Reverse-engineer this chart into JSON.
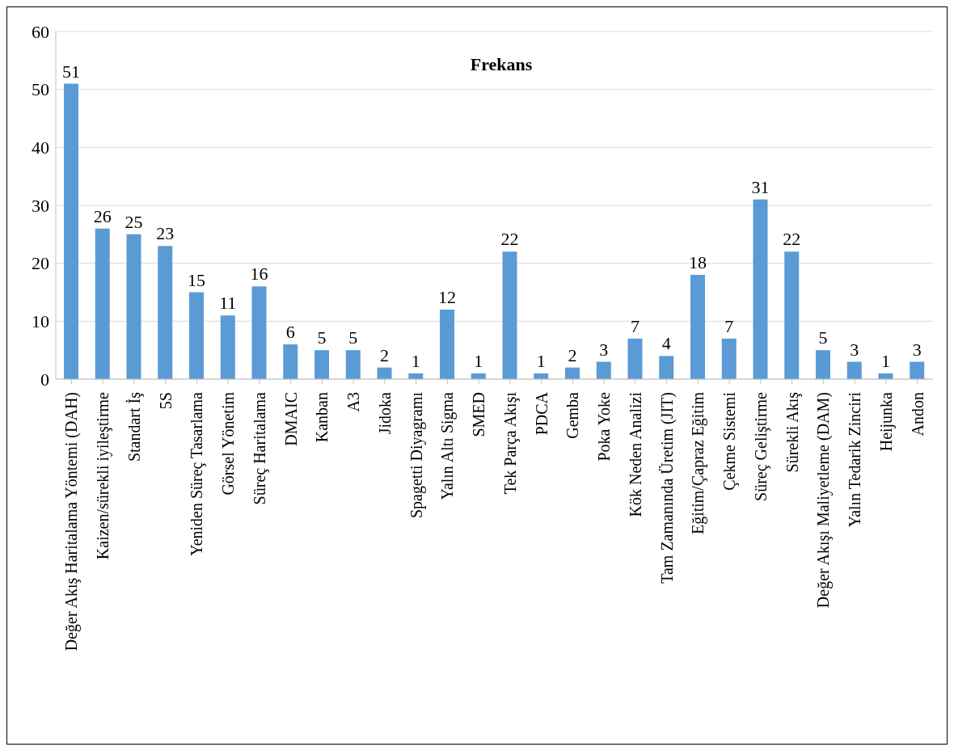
{
  "chart_data": {
    "type": "bar",
    "title": "Frekans",
    "categories": [
      "Değer Akış Haritalama Yöntemi (DAH)",
      "Kaizen/sürekli iyileştirme",
      "Standart İş",
      "5S",
      "Yeniden Süreç Tasarlama",
      "Görsel Yönetim",
      "Süreç Haritalama",
      "DMAIC",
      "Kanban",
      "A3",
      "Jidoka",
      "Spagetti Diyagramı",
      "Yalın Altı Sigma",
      "SMED",
      "Tek Parça Akışı",
      "PDCA",
      "Gemba",
      "Poka Yoke",
      "Kök Neden Analizi",
      "Tam Zamanında Üretim (JIT)",
      "Eğitim/Çapraz Eğitim",
      "Çekme Sistemi",
      "Süreç Geliştirme",
      "Sürekli Akış",
      "Değer Akışı Maliyetleme (DAM)",
      "Yalın Tedarik Zinciri",
      "Heijunka",
      "Andon"
    ],
    "values": [
      51,
      26,
      25,
      23,
      15,
      11,
      16,
      6,
      5,
      5,
      2,
      1,
      12,
      1,
      22,
      1,
      2,
      3,
      7,
      4,
      18,
      7,
      31,
      22,
      5,
      3,
      1,
      3
    ],
    "color": "#5b9bd5",
    "ylim": [
      0,
      60
    ],
    "yticks": [
      0,
      10,
      20,
      30,
      40,
      50,
      60
    ],
    "grid": "y",
    "data_labels": true
  }
}
